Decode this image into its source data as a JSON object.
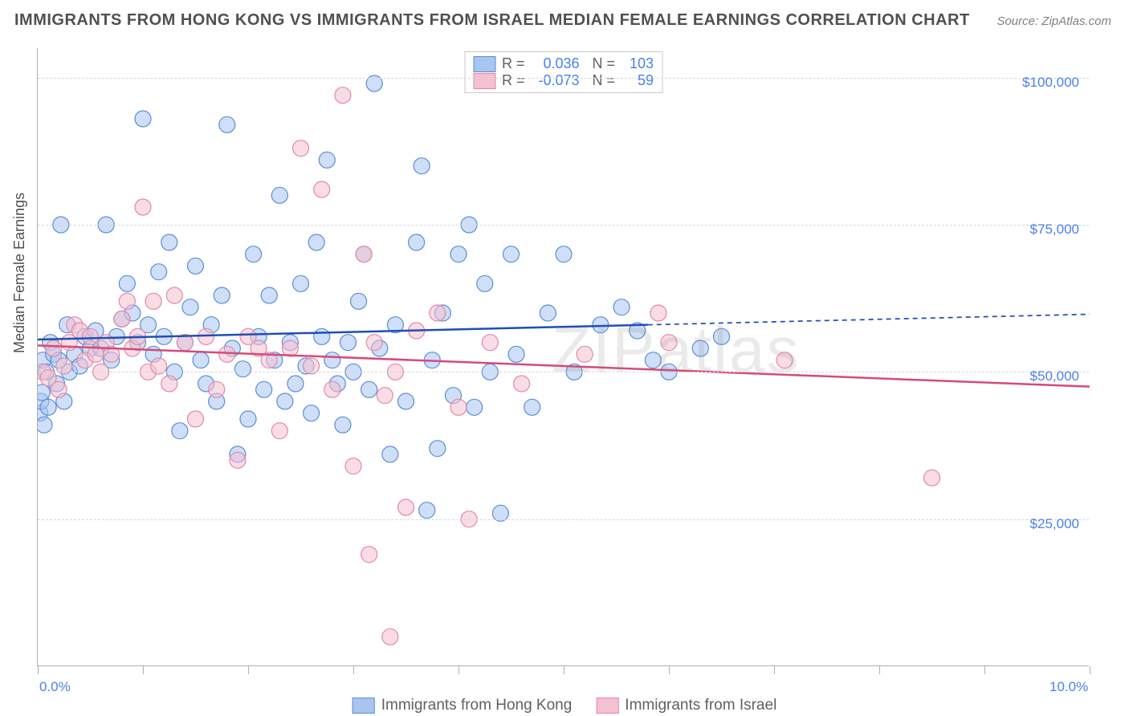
{
  "title": "IMMIGRANTS FROM HONG KONG VS IMMIGRANTS FROM ISRAEL MEDIAN FEMALE EARNINGS CORRELATION CHART",
  "source": "Source: ZipAtlas.com",
  "watermark": "ZIPatlas",
  "ylabel": "Median Female Earnings",
  "chart": {
    "type": "scatter-correlation",
    "xlim": [
      0.0,
      10.0
    ],
    "ylim": [
      0,
      105000
    ],
    "x_tick_positions": [
      0.0,
      1.0,
      2.0,
      3.0,
      4.0,
      5.0,
      6.0,
      7.0,
      8.0,
      9.0,
      10.0
    ],
    "x_tick_labels_shown": {
      "0.0": "0.0%",
      "10.0": "10.0%"
    },
    "y_gridlines": [
      25000,
      50000,
      75000,
      100000
    ],
    "y_tick_labels": {
      "25000": "$25,000",
      "50000": "$50,000",
      "75000": "$75,000",
      "100000": "$100,000"
    },
    "background_color": "#ffffff",
    "grid_color": "#d8d8d8",
    "axis_color": "#b0b0b0",
    "marker_radius": 10,
    "marker_opacity": 0.55,
    "line_width": 2.5,
    "series": [
      {
        "name": "Immigrants from Hong Kong",
        "fill_color": "#a8c5f0",
        "stroke_color": "#5b8dd6",
        "line_color": "#1f4fb5",
        "R": "0.036",
        "N": "103",
        "trend_start": [
          0.0,
          55500
        ],
        "trend_solid_end": [
          5.8,
          58000
        ],
        "trend_dash_end": [
          10.0,
          59800
        ],
        "points": [
          [
            0.02,
            43000
          ],
          [
            0.03,
            45000
          ],
          [
            0.04,
            46500
          ],
          [
            0.05,
            52000
          ],
          [
            0.06,
            41000
          ],
          [
            0.08,
            50000
          ],
          [
            0.1,
            44000
          ],
          [
            0.12,
            55000
          ],
          [
            0.15,
            53000
          ],
          [
            0.18,
            48000
          ],
          [
            0.2,
            52000
          ],
          [
            0.22,
            75000
          ],
          [
            0.25,
            45000
          ],
          [
            0.28,
            58000
          ],
          [
            0.3,
            50000
          ],
          [
            0.35,
            53000
          ],
          [
            0.4,
            51000
          ],
          [
            0.45,
            56000
          ],
          [
            0.5,
            54000
          ],
          [
            0.55,
            57000
          ],
          [
            0.6,
            54000
          ],
          [
            0.65,
            75000
          ],
          [
            0.7,
            52000
          ],
          [
            0.75,
            56000
          ],
          [
            0.8,
            59000
          ],
          [
            0.85,
            65000
          ],
          [
            0.9,
            60000
          ],
          [
            0.95,
            55000
          ],
          [
            1.0,
            93000
          ],
          [
            1.05,
            58000
          ],
          [
            1.1,
            53000
          ],
          [
            1.15,
            67000
          ],
          [
            1.2,
            56000
          ],
          [
            1.25,
            72000
          ],
          [
            1.3,
            50000
          ],
          [
            1.35,
            40000
          ],
          [
            1.4,
            55000
          ],
          [
            1.45,
            61000
          ],
          [
            1.5,
            68000
          ],
          [
            1.55,
            52000
          ],
          [
            1.6,
            48000
          ],
          [
            1.65,
            58000
          ],
          [
            1.7,
            45000
          ],
          [
            1.75,
            63000
          ],
          [
            1.8,
            92000
          ],
          [
            1.85,
            54000
          ],
          [
            1.9,
            36000
          ],
          [
            1.95,
            50500
          ],
          [
            2.0,
            42000
          ],
          [
            2.05,
            70000
          ],
          [
            2.1,
            56000
          ],
          [
            2.15,
            47000
          ],
          [
            2.2,
            63000
          ],
          [
            2.25,
            52000
          ],
          [
            2.3,
            80000
          ],
          [
            2.35,
            45000
          ],
          [
            2.4,
            55000
          ],
          [
            2.45,
            48000
          ],
          [
            2.5,
            65000
          ],
          [
            2.55,
            51000
          ],
          [
            2.6,
            43000
          ],
          [
            2.65,
            72000
          ],
          [
            2.7,
            56000
          ],
          [
            2.75,
            86000
          ],
          [
            2.8,
            52000
          ],
          [
            2.85,
            48000
          ],
          [
            2.9,
            41000
          ],
          [
            2.95,
            55000
          ],
          [
            3.0,
            50000
          ],
          [
            3.05,
            62000
          ],
          [
            3.1,
            70000
          ],
          [
            3.15,
            47000
          ],
          [
            3.2,
            99000
          ],
          [
            3.25,
            54000
          ],
          [
            3.35,
            36000
          ],
          [
            3.4,
            58000
          ],
          [
            3.5,
            45000
          ],
          [
            3.6,
            72000
          ],
          [
            3.65,
            85000
          ],
          [
            3.7,
            26500
          ],
          [
            3.75,
            52000
          ],
          [
            3.8,
            37000
          ],
          [
            3.85,
            60000
          ],
          [
            3.95,
            46000
          ],
          [
            4.0,
            70000
          ],
          [
            4.1,
            75000
          ],
          [
            4.15,
            44000
          ],
          [
            4.25,
            65000
          ],
          [
            4.3,
            50000
          ],
          [
            4.4,
            26000
          ],
          [
            4.5,
            70000
          ],
          [
            4.55,
            53000
          ],
          [
            4.7,
            44000
          ],
          [
            4.85,
            60000
          ],
          [
            5.0,
            70000
          ],
          [
            5.1,
            50000
          ],
          [
            5.35,
            58000
          ],
          [
            5.55,
            61000
          ],
          [
            5.7,
            57000
          ],
          [
            5.85,
            52000
          ],
          [
            6.0,
            50000
          ],
          [
            6.3,
            54000
          ],
          [
            6.5,
            56000
          ]
        ]
      },
      {
        "name": "Immigrants from Israel",
        "fill_color": "#f5c0d0",
        "stroke_color": "#e089a8",
        "line_color": "#d64a7a",
        "R": "-0.073",
        "N": "59",
        "trend_start": [
          0.0,
          54500
        ],
        "trend_solid_end": [
          10.0,
          47500
        ],
        "trend_dash_end": null,
        "points": [
          [
            0.05,
            50000
          ],
          [
            0.1,
            49000
          ],
          [
            0.15,
            54000
          ],
          [
            0.2,
            47000
          ],
          [
            0.25,
            51000
          ],
          [
            0.3,
            55000
          ],
          [
            0.35,
            58000
          ],
          [
            0.4,
            57000
          ],
          [
            0.45,
            52000
          ],
          [
            0.5,
            56000
          ],
          [
            0.55,
            53000
          ],
          [
            0.6,
            50000
          ],
          [
            0.65,
            55000
          ],
          [
            0.7,
            53000
          ],
          [
            0.8,
            59000
          ],
          [
            0.85,
            62000
          ],
          [
            0.9,
            54000
          ],
          [
            0.95,
            56000
          ],
          [
            1.0,
            78000
          ],
          [
            1.05,
            50000
          ],
          [
            1.1,
            62000
          ],
          [
            1.15,
            51000
          ],
          [
            1.25,
            48000
          ],
          [
            1.3,
            63000
          ],
          [
            1.4,
            55000
          ],
          [
            1.5,
            42000
          ],
          [
            1.6,
            56000
          ],
          [
            1.7,
            47000
          ],
          [
            1.8,
            53000
          ],
          [
            1.9,
            35000
          ],
          [
            2.0,
            56000
          ],
          [
            2.1,
            54000
          ],
          [
            2.2,
            52000
          ],
          [
            2.3,
            40000
          ],
          [
            2.4,
            54000
          ],
          [
            2.5,
            88000
          ],
          [
            2.6,
            51000
          ],
          [
            2.7,
            81000
          ],
          [
            2.8,
            47000
          ],
          [
            2.9,
            97000
          ],
          [
            3.0,
            34000
          ],
          [
            3.1,
            70000
          ],
          [
            3.15,
            19000
          ],
          [
            3.2,
            55000
          ],
          [
            3.3,
            46000
          ],
          [
            3.35,
            5000
          ],
          [
            3.4,
            50000
          ],
          [
            3.5,
            27000
          ],
          [
            3.6,
            57000
          ],
          [
            3.8,
            60000
          ],
          [
            4.0,
            44000
          ],
          [
            4.1,
            25000
          ],
          [
            4.3,
            55000
          ],
          [
            4.6,
            48000
          ],
          [
            5.2,
            53000
          ],
          [
            5.9,
            60000
          ],
          [
            6.0,
            55000
          ],
          [
            7.1,
            52000
          ],
          [
            8.5,
            32000
          ]
        ]
      }
    ]
  },
  "legend_bottom": [
    {
      "label": "Immigrants from Hong Kong",
      "fill": "#a8c5f0",
      "stroke": "#5b8dd6"
    },
    {
      "label": "Immigrants from Israel",
      "fill": "#f5c0d0",
      "stroke": "#e089a8"
    }
  ]
}
